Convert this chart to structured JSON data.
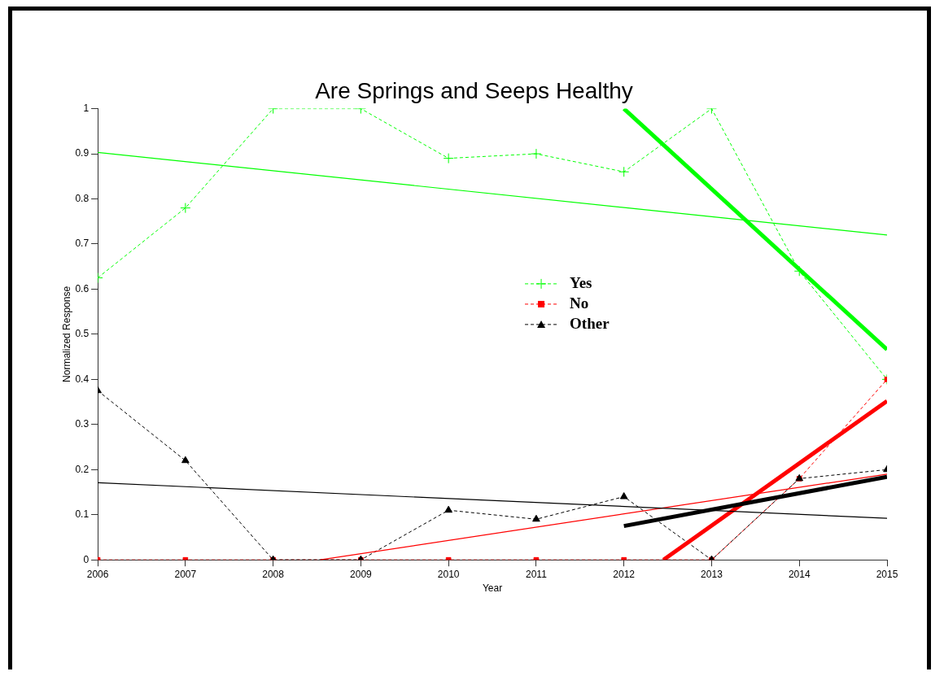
{
  "chart_data": {
    "type": "line",
    "title": "Are Springs and Seeps Healthy",
    "xlabel": "Year",
    "ylabel": "Normalized Response",
    "x": [
      2006,
      2007,
      2008,
      2009,
      2010,
      2011,
      2012,
      2013,
      2014,
      2015
    ],
    "series": [
      {
        "name": "Yes",
        "color": "#00ff00",
        "marker": "cross",
        "line_style": "dashed",
        "values": [
          0.625,
          0.78,
          1,
          1,
          0.89,
          0.9,
          0.86,
          1,
          0.64,
          0.4
        ]
      },
      {
        "name": "No",
        "color": "#ff0000",
        "marker": "square",
        "line_style": "dashed",
        "values": [
          0,
          0,
          0,
          0,
          0,
          0,
          0,
          0,
          0.18,
          0.4
        ]
      },
      {
        "name": "Other",
        "color": "#000000",
        "marker": "triangle",
        "line_style": "dashed",
        "values": [
          0.375,
          0.22,
          0,
          0,
          0.11,
          0.09,
          0.14,
          0,
          0.18,
          0.2
        ]
      },
      {
        "type": "line",
        "color": "#00ff00",
        "marker": "none",
        "line_style": "solid",
        "x": [
          2006,
          2015
        ],
        "values": [
          0.903,
          0.72
        ]
      },
      {
        "type": "line",
        "color": "#00ff00",
        "marker": "none",
        "line_style": "solid",
        "x": [
          2012,
          2015
        ],
        "values": [
          1,
          0.466
        ]
      },
      {
        "type": "line",
        "color": "#ff0000",
        "marker": "none",
        "line_style": "solid",
        "x": [
          2008.54,
          2015
        ],
        "values": [
          0,
          0.19
        ]
      },
      {
        "type": "line",
        "color": "#ff0000",
        "marker": "none",
        "line_style": "solid",
        "x": [
          2012.45,
          2015
        ],
        "values": [
          0,
          0.352
        ]
      },
      {
        "type": "line",
        "color": "#000000",
        "marker": "none",
        "line_style": "solid",
        "x": [
          2006,
          2015
        ],
        "values": [
          0.171,
          0.092
        ]
      },
      {
        "type": "line",
        "color": "#000000",
        "marker": "none",
        "line_style": "solid",
        "x": [
          2012,
          2015
        ],
        "values": [
          0.075,
          0.184
        ]
      }
    ],
    "xlim": [
      2006,
      2015
    ],
    "xticks": [
      2006,
      2007,
      2008,
      2009,
      2010,
      2011,
      2012,
      2013,
      2014,
      2015
    ],
    "ylim": [
      0,
      1
    ],
    "yticks": [
      0,
      0.1,
      0.2,
      0.3,
      0.4,
      0.5,
      0.6,
      0.7,
      0.8,
      0.9,
      1
    ],
    "grid": false,
    "legend": "center"
  }
}
